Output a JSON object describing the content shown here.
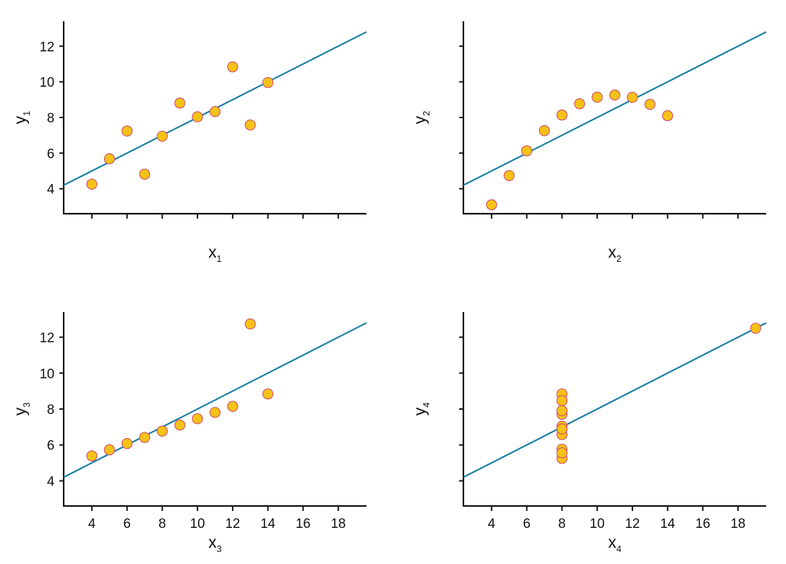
{
  "chart_data": [
    {
      "type": "scatter",
      "xlabel": "x",
      "xlabel_sub": "1",
      "ylabel": "y",
      "ylabel_sub": "1",
      "xlim": [
        2.4,
        19.6
      ],
      "ylim": [
        2.6,
        13.4
      ],
      "xticks": [
        4,
        6,
        8,
        10,
        12,
        14,
        16,
        18
      ],
      "show_xtick_labels": false,
      "yticks": [
        4,
        6,
        8,
        10,
        12
      ],
      "show_ytick_labels": true,
      "x": [
        10,
        8,
        13,
        9,
        11,
        14,
        6,
        4,
        12,
        7,
        5
      ],
      "y": [
        8.04,
        6.95,
        7.58,
        8.81,
        8.33,
        9.96,
        7.24,
        4.26,
        10.84,
        4.82,
        5.68
      ],
      "fit": {
        "intercept": 3.0,
        "slope": 0.5
      },
      "grid": false
    },
    {
      "type": "scatter",
      "xlabel": "x",
      "xlabel_sub": "2",
      "ylabel": "y",
      "ylabel_sub": "2",
      "xlim": [
        2.4,
        19.6
      ],
      "ylim": [
        2.6,
        13.4
      ],
      "xticks": [
        4,
        6,
        8,
        10,
        12,
        14,
        16,
        18
      ],
      "show_xtick_labels": false,
      "yticks": [
        4,
        6,
        8,
        10,
        12
      ],
      "show_ytick_labels": false,
      "x": [
        10,
        8,
        13,
        9,
        11,
        14,
        6,
        4,
        12,
        7,
        5
      ],
      "y": [
        9.14,
        8.14,
        8.74,
        8.77,
        9.26,
        8.1,
        6.13,
        3.1,
        9.13,
        7.26,
        4.74
      ],
      "fit": {
        "intercept": 3.0,
        "slope": 0.5
      },
      "grid": false
    },
    {
      "type": "scatter",
      "xlabel": "x",
      "xlabel_sub": "3",
      "ylabel": "y",
      "ylabel_sub": "3",
      "xlim": [
        2.4,
        19.6
      ],
      "ylim": [
        2.6,
        13.4
      ],
      "xticks": [
        4,
        6,
        8,
        10,
        12,
        14,
        16,
        18
      ],
      "show_xtick_labels": true,
      "yticks": [
        4,
        6,
        8,
        10,
        12
      ],
      "show_ytick_labels": true,
      "x": [
        10,
        8,
        13,
        9,
        11,
        14,
        6,
        4,
        12,
        7,
        5
      ],
      "y": [
        7.46,
        6.77,
        12.74,
        7.11,
        7.81,
        8.84,
        6.08,
        5.39,
        8.15,
        6.42,
        5.73
      ],
      "fit": {
        "intercept": 3.0,
        "slope": 0.5
      },
      "grid": false
    },
    {
      "type": "scatter",
      "xlabel": "x",
      "xlabel_sub": "4",
      "ylabel": "y",
      "ylabel_sub": "4",
      "xlim": [
        2.4,
        19.6
      ],
      "ylim": [
        2.6,
        13.4
      ],
      "xticks": [
        4,
        6,
        8,
        10,
        12,
        14,
        16,
        18
      ],
      "show_xtick_labels": true,
      "yticks": [
        4,
        6,
        8,
        10,
        12
      ],
      "show_ytick_labels": false,
      "x": [
        8,
        8,
        8,
        8,
        8,
        8,
        8,
        19,
        8,
        8,
        8
      ],
      "y": [
        6.58,
        5.76,
        7.71,
        8.84,
        8.47,
        7.04,
        5.25,
        12.5,
        5.56,
        7.91,
        6.89
      ],
      "fit": {
        "intercept": 3.0,
        "slope": 0.5
      },
      "grid": false
    }
  ],
  "colors": {
    "point_fill": "#f5c218",
    "point_stroke": "#d4496e",
    "fit_line": "#1a7fa3",
    "axis": "#111111"
  }
}
